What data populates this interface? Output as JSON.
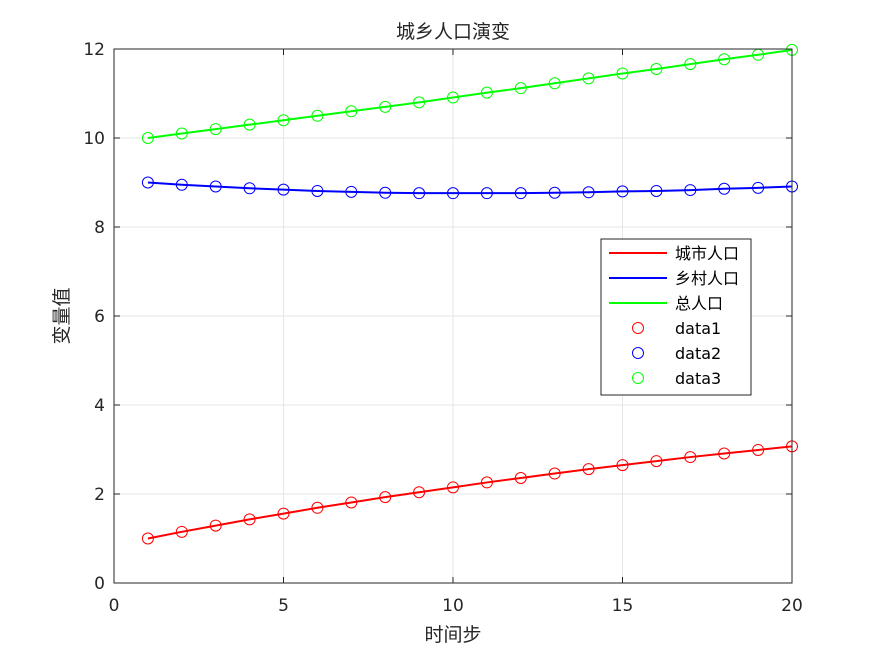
{
  "chart_data": {
    "type": "line",
    "title": "城乡人口演变",
    "xlabel": "时间步",
    "ylabel": "变量值",
    "xlim": [
      0,
      20
    ],
    "ylim": [
      0,
      12
    ],
    "xticks": [
      "0",
      "5",
      "10",
      "15",
      "20"
    ],
    "yticks": [
      "0",
      "2",
      "4",
      "6",
      "8",
      "10",
      "12"
    ],
    "grid": true,
    "legend_position": "center-right",
    "x": [
      1,
      2,
      3,
      4,
      5,
      6,
      7,
      8,
      9,
      10,
      11,
      12,
      13,
      14,
      15,
      16,
      17,
      18,
      19,
      20
    ],
    "series": [
      {
        "name": "城市人口",
        "color": "#ff0000",
        "style": "line",
        "values": [
          1.0,
          1.15,
          1.29,
          1.43,
          1.56,
          1.69,
          1.81,
          1.93,
          2.04,
          2.15,
          2.26,
          2.36,
          2.46,
          2.56,
          2.65,
          2.74,
          2.83,
          2.91,
          2.99,
          3.07
        ]
      },
      {
        "name": "乡村人口",
        "color": "#0000ff",
        "style": "line",
        "values": [
          9.0,
          8.95,
          8.91,
          8.87,
          8.84,
          8.81,
          8.79,
          8.77,
          8.76,
          8.76,
          8.76,
          8.76,
          8.77,
          8.78,
          8.8,
          8.81,
          8.83,
          8.86,
          8.88,
          8.91
        ]
      },
      {
        "name": "总人口",
        "color": "#00ff00",
        "style": "line",
        "values": [
          10.0,
          10.1,
          10.2,
          10.3,
          10.4,
          10.5,
          10.6,
          10.7,
          10.8,
          10.91,
          11.02,
          11.12,
          11.23,
          11.34,
          11.45,
          11.55,
          11.66,
          11.77,
          11.87,
          11.98
        ]
      },
      {
        "name": "data1",
        "color": "#ff0000",
        "style": "marker",
        "values": [
          1.0,
          1.15,
          1.29,
          1.43,
          1.56,
          1.69,
          1.81,
          1.93,
          2.04,
          2.15,
          2.26,
          2.36,
          2.46,
          2.56,
          2.65,
          2.74,
          2.83,
          2.91,
          2.99,
          3.07
        ]
      },
      {
        "name": "data2",
        "color": "#0000ff",
        "style": "marker",
        "values": [
          9.0,
          8.95,
          8.91,
          8.87,
          8.84,
          8.81,
          8.79,
          8.77,
          8.76,
          8.76,
          8.76,
          8.76,
          8.77,
          8.78,
          8.8,
          8.81,
          8.83,
          8.86,
          8.88,
          8.91
        ]
      },
      {
        "name": "data3",
        "color": "#00ff00",
        "style": "marker",
        "values": [
          10.0,
          10.1,
          10.2,
          10.3,
          10.4,
          10.5,
          10.6,
          10.7,
          10.8,
          10.91,
          11.02,
          11.12,
          11.23,
          11.34,
          11.45,
          11.55,
          11.66,
          11.77,
          11.87,
          11.98
        ]
      }
    ]
  }
}
